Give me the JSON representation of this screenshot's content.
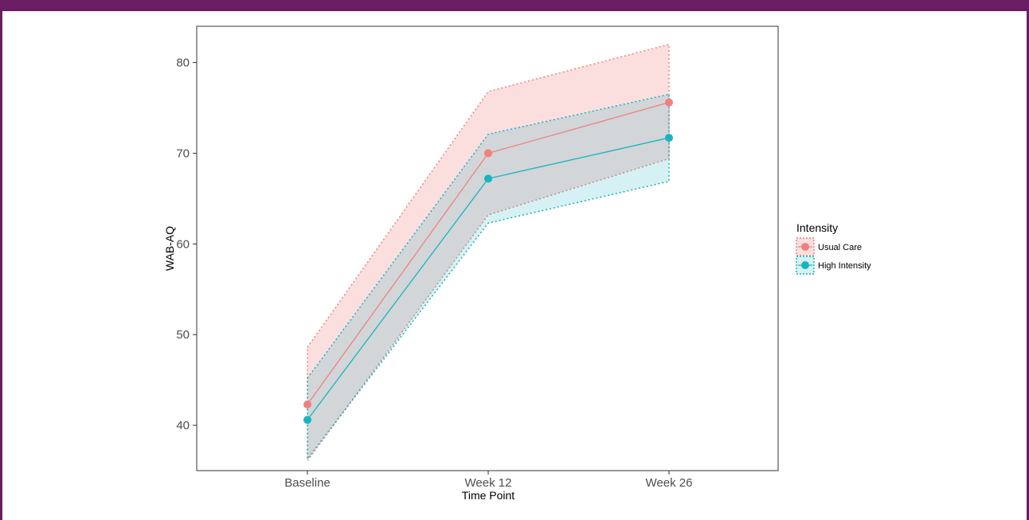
{
  "chart_data": {
    "type": "line",
    "title": "",
    "xlabel": "Time Point",
    "ylabel": "WAB-AQ",
    "categories": [
      "Baseline",
      "Week 12",
      "Week 26"
    ],
    "ylim": [
      35,
      84
    ],
    "yticks": [
      40,
      50,
      60,
      70,
      80
    ],
    "grid": false,
    "legend": {
      "title": "Intensity",
      "position": "right"
    },
    "series": [
      {
        "name": "Usual Care",
        "color": "#f08080",
        "values": [
          42.3,
          70.0,
          75.6
        ],
        "lower": [
          36.1,
          63.2,
          69.4
        ],
        "upper": [
          48.6,
          76.8,
          82.0
        ]
      },
      {
        "name": "High Intensity",
        "color": "#1ab3c0",
        "values": [
          40.6,
          67.2,
          71.7
        ],
        "lower": [
          36.3,
          62.3,
          66.9
        ],
        "upper": [
          45.2,
          72.1,
          76.5
        ]
      }
    ]
  }
}
